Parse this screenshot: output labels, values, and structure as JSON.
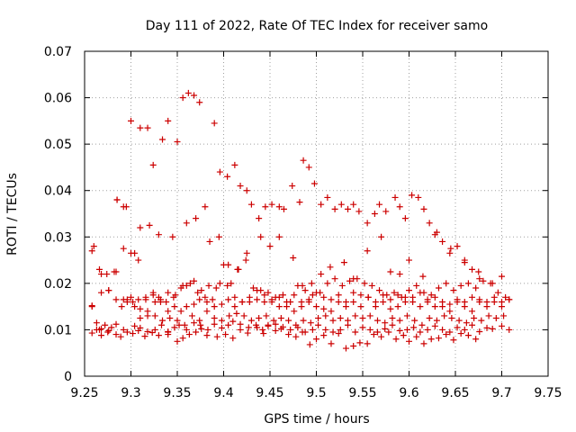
{
  "chart_data": {
    "type": "scatter",
    "title": "Day 111 of 2022, Rate Of TEC Index for receiver samo",
    "xlabel": "GPS time / hours",
    "ylabel": "ROTI / TECUs",
    "xlim": [
      9.25,
      9.75
    ],
    "ylim": [
      0,
      0.07
    ],
    "xticks": [
      9.25,
      9.3,
      9.35,
      9.4,
      9.45,
      9.5,
      9.55,
      9.6,
      9.65,
      9.7,
      9.75
    ],
    "xtick_labels": [
      "9.25",
      "9.3",
      "9.35",
      "9.4",
      "9.45",
      "9.5",
      "9.55",
      "9.6",
      "9.65",
      "9.7",
      "9.75"
    ],
    "yticks": [
      0,
      0.01,
      0.02,
      0.03,
      0.04,
      0.05,
      0.06,
      0.07
    ],
    "ytick_labels": [
      "0",
      "0.01",
      "0.02",
      "0.03",
      "0.04",
      "0.05",
      "0.06",
      "0.07"
    ],
    "grid": true,
    "marker": "plus",
    "color": "#cc0000",
    "series": [
      {
        "x": [
          9.258,
          9.258,
          9.263,
          9.263,
          9.268,
          9.268,
          9.275,
          9.279,
          9.284,
          9.289,
          9.302,
          9.308,
          9.315,
          9.323,
          9.33,
          9.34,
          9.34,
          9.35,
          9.356,
          9.363,
          9.37,
          9.376,
          9.382,
          9.393,
          9.402,
          9.41,
          9.418,
          9.426,
          9.436,
          9.443,
          9.448,
          9.456,
          9.462,
          9.47,
          9.478,
          9.485,
          9.493,
          9.5,
          9.508,
          9.516,
          9.524,
          9.532,
          9.54,
          9.547,
          9.555,
          9.562,
          9.57,
          9.578,
          9.586,
          9.594,
          9.6,
          9.608,
          9.616,
          9.624,
          9.632,
          9.64,
          9.648,
          9.656,
          9.664,
          9.672,
          9.258,
          9.266,
          9.272,
          9.276,
          9.284,
          9.292,
          9.296,
          9.304,
          9.31,
          9.318,
          9.326,
          9.333,
          9.34,
          9.347,
          9.352,
          9.36,
          9.368,
          9.375,
          9.383,
          9.39,
          9.398,
          9.405,
          9.41,
          9.418,
          9.427,
          9.435,
          9.442,
          9.448,
          9.456,
          9.464,
          9.472,
          9.48,
          9.488,
          9.496,
          9.502,
          9.51,
          9.518,
          9.526,
          9.534,
          9.542,
          9.55,
          9.558,
          9.566,
          9.574,
          9.582,
          9.59,
          9.598,
          9.605,
          9.612,
          9.62,
          9.628,
          9.636,
          9.644,
          9.652,
          9.66,
          9.668,
          9.676,
          9.684,
          9.69,
          9.7,
          9.708,
          9.258,
          9.266,
          9.274,
          9.282,
          9.29,
          9.296,
          9.304,
          9.31,
          9.318,
          9.326,
          9.332,
          9.34,
          9.347,
          9.354,
          9.36,
          9.368,
          9.374,
          9.382,
          9.39,
          9.398,
          9.405,
          9.412,
          9.42,
          9.428,
          9.436,
          9.444,
          9.452,
          9.46,
          9.468,
          9.476,
          9.484,
          9.492,
          9.5,
          9.508,
          9.516,
          9.524,
          9.532,
          9.54,
          9.548,
          9.556,
          9.564,
          9.572,
          9.58,
          9.588,
          9.596,
          9.604,
          9.612,
          9.62,
          9.628,
          9.636,
          9.644,
          9.652,
          9.66,
          9.668,
          9.676,
          9.684,
          9.692,
          9.7,
          9.708,
          9.26,
          9.268,
          9.276,
          9.284,
          9.292,
          9.3,
          9.308,
          9.316,
          9.324,
          9.332,
          9.34,
          9.348,
          9.356,
          9.364,
          9.372,
          9.38,
          9.388,
          9.396,
          9.404,
          9.412,
          9.42,
          9.428,
          9.436,
          9.444,
          9.452,
          9.46,
          9.468,
          9.476,
          9.484,
          9.492,
          9.5,
          9.508,
          9.516,
          9.524,
          9.532,
          9.54,
          9.548,
          9.556,
          9.564,
          9.572,
          9.58,
          9.588,
          9.596,
          9.604,
          9.612,
          9.62,
          9.628,
          9.636,
          9.644,
          9.652,
          9.66,
          9.668,
          9.676,
          9.684,
          9.692,
          9.7,
          9.708,
          9.296,
          9.302,
          9.31,
          9.318,
          9.326,
          9.334,
          9.342,
          9.35,
          9.358,
          9.366,
          9.374,
          9.382,
          9.39,
          9.398,
          9.406,
          9.414,
          9.422,
          9.43,
          9.438,
          9.446,
          9.454,
          9.462,
          9.47,
          9.478,
          9.486,
          9.494,
          9.502,
          9.51,
          9.518,
          9.526,
          9.534,
          9.542,
          9.55,
          9.558,
          9.566,
          9.574,
          9.582,
          9.59,
          9.598,
          9.606,
          9.614,
          9.622,
          9.63,
          9.638,
          9.646,
          9.654,
          9.662,
          9.67,
          9.678,
          9.686,
          9.694,
          9.702,
          9.268,
          9.276,
          9.284,
          9.292,
          9.3,
          9.308,
          9.316,
          9.324,
          9.33,
          9.338,
          9.346,
          9.354,
          9.36,
          9.368,
          9.376,
          9.384,
          9.392,
          9.4,
          9.408,
          9.416,
          9.424,
          9.432,
          9.44,
          9.448,
          9.456,
          9.464,
          9.472,
          9.48,
          9.488,
          9.496,
          9.504,
          9.512,
          9.52,
          9.528,
          9.536,
          9.544,
          9.552,
          9.56,
          9.568,
          9.576,
          9.584,
          9.592,
          9.6,
          9.608,
          9.616,
          9.624,
          9.632,
          9.64,
          9.648,
          9.656,
          9.664,
          9.672,
          9.68,
          9.688,
          9.696,
          9.704,
          9.285,
          9.295,
          9.31,
          9.32,
          9.33,
          9.345,
          9.36,
          9.37,
          9.385,
          9.395,
          9.405,
          9.415,
          9.425,
          9.44,
          9.45,
          9.46,
          9.475,
          9.485,
          9.495,
          9.505,
          9.515,
          9.53,
          9.54,
          9.555,
          9.57,
          9.58,
          9.59,
          9.6,
          9.615,
          9.63,
          9.645,
          9.66,
          9.675,
          9.69,
          9.7,
          9.285,
          9.292,
          9.3,
          9.304,
          9.31,
          9.318,
          9.324,
          9.334,
          9.34,
          9.35,
          9.356,
          9.362,
          9.368,
          9.374,
          9.38,
          9.39,
          9.396,
          9.404,
          9.412,
          9.418,
          9.425,
          9.43,
          9.438,
          9.445,
          9.452,
          9.46,
          9.465,
          9.474,
          9.482,
          9.486,
          9.492,
          9.498,
          9.505,
          9.512,
          9.52,
          9.527,
          9.534,
          9.54,
          9.546,
          9.555,
          9.563,
          9.568,
          9.575,
          9.585,
          9.59,
          9.596,
          9.603,
          9.61,
          9.616,
          9.622,
          9.628,
          9.636,
          9.644,
          9.652,
          9.66,
          9.668,
          9.676
        ],
        "y": [
          0.0152,
          0.0093,
          0.01,
          0.0115,
          0.0102,
          0.0088,
          0.0095,
          0.0105,
          0.009,
          0.0085,
          0.0092,
          0.0098,
          0.0086,
          0.0094,
          0.0088,
          0.0095,
          0.009,
          0.0075,
          0.0082,
          0.009,
          0.0095,
          0.0102,
          0.0088,
          0.0085,
          0.009,
          0.0082,
          0.01,
          0.0093,
          0.0105,
          0.0092,
          0.011,
          0.0098,
          0.0102,
          0.009,
          0.0085,
          0.0095,
          0.0068,
          0.008,
          0.0088,
          0.007,
          0.0092,
          0.006,
          0.0065,
          0.0072,
          0.007,
          0.009,
          0.0085,
          0.0095,
          0.008,
          0.0088,
          0.0075,
          0.0085,
          0.007,
          0.008,
          0.0082,
          0.009,
          0.0078,
          0.0092,
          0.0088,
          0.008,
          0.015,
          0.01,
          0.011,
          0.0098,
          0.0112,
          0.01,
          0.0095,
          0.0108,
          0.0104,
          0.0096,
          0.01,
          0.011,
          0.0096,
          0.0105,
          0.011,
          0.01,
          0.0115,
          0.011,
          0.01,
          0.0112,
          0.0104,
          0.011,
          0.0118,
          0.0112,
          0.0105,
          0.011,
          0.01,
          0.0108,
          0.0112,
          0.0106,
          0.01,
          0.0105,
          0.0095,
          0.01,
          0.011,
          0.01,
          0.0095,
          0.01,
          0.011,
          0.0095,
          0.0105,
          0.01,
          0.0095,
          0.0102,
          0.011,
          0.0098,
          0.01,
          0.0105,
          0.0095,
          0.01,
          0.0108,
          0.01,
          0.0095,
          0.0105,
          0.01,
          0.011,
          0.0096,
          0.0104,
          0.0102,
          0.0108,
          0.01,
          0.027,
          0.023,
          0.022,
          0.0225,
          0.015,
          0.016,
          0.015,
          0.0145,
          0.014,
          0.016,
          0.0165,
          0.014,
          0.015,
          0.014,
          0.015,
          0.0155,
          0.0165,
          0.016,
          0.015,
          0.0155,
          0.0165,
          0.015,
          0.016,
          0.016,
          0.0165,
          0.016,
          0.016,
          0.015,
          0.015,
          0.014,
          0.015,
          0.016,
          0.015,
          0.0145,
          0.014,
          0.016,
          0.015,
          0.016,
          0.015,
          0.017,
          0.015,
          0.016,
          0.0145,
          0.015,
          0.017,
          0.016,
          0.015,
          0.016,
          0.015,
          0.015,
          0.014,
          0.016,
          0.015,
          0.014,
          0.016,
          0.015,
          0.016,
          0.015,
          0.0165,
          0.028,
          0.018,
          0.0185,
          0.0165,
          0.0165,
          0.017,
          0.0165,
          0.017,
          0.0175,
          0.016,
          0.018,
          0.0175,
          0.0195,
          0.02,
          0.018,
          0.017,
          0.0165,
          0.02,
          0.0195,
          0.017,
          0.016,
          0.017,
          0.0185,
          0.0175,
          0.0165,
          0.017,
          0.016,
          0.0175,
          0.016,
          0.0165,
          0.018,
          0.017,
          0.0165,
          0.0175,
          0.016,
          0.018,
          0.0175,
          0.017,
          0.016,
          0.0175,
          0.0165,
          0.0175,
          0.016,
          0.017,
          0.018,
          0.0165,
          0.017,
          0.016,
          0.0155,
          0.0165,
          0.016,
          0.017,
          0.0165,
          0.016,
          0.017,
          0.016,
          0.0165,
          0.0165,
          0.016,
          0.0125,
          0.013,
          0.013,
          0.012,
          0.0125,
          0.012,
          0.011,
          0.013,
          0.012,
          0.014,
          0.0125,
          0.012,
          0.013,
          0.0135,
          0.013,
          0.012,
          0.0125,
          0.013,
          0.012,
          0.0125,
          0.012,
          0.011,
          0.012,
          0.0115,
          0.0125,
          0.013,
          0.012,
          0.0125,
          0.012,
          0.013,
          0.0125,
          0.013,
          0.012,
          0.0115,
          0.0125,
          0.012,
          0.013,
          0.012,
          0.011,
          0.0125,
          0.012,
          0.013,
          0.0125,
          0.012,
          0.0115,
          0.0125,
          0.012,
          0.013,
          0.0125,
          0.013,
          0.022,
          0.0185,
          0.0225,
          0.0275,
          0.0265,
          0.025,
          0.0165,
          0.018,
          0.017,
          0.016,
          0.017,
          0.019,
          0.0195,
          0.0205,
          0.0185,
          0.0195,
          0.019,
          0.024,
          0.02,
          0.023,
          0.025,
          0.019,
          0.0185,
          0.018,
          0.017,
          0.0175,
          0.016,
          0.0195,
          0.0185,
          0.0175,
          0.018,
          0.02,
          0.021,
          0.0195,
          0.0205,
          0.021,
          0.02,
          0.0195,
          0.0185,
          0.0175,
          0.018,
          0.017,
          0.0185,
          0.0195,
          0.018,
          0.0175,
          0.019,
          0.02,
          0.0185,
          0.0195,
          0.02,
          0.019,
          0.0205,
          0.02,
          0.018,
          0.017,
          0.038,
          0.0365,
          0.032,
          0.0325,
          0.0305,
          0.03,
          0.033,
          0.034,
          0.029,
          0.03,
          0.024,
          0.023,
          0.0265,
          0.03,
          0.028,
          0.03,
          0.0255,
          0.0195,
          0.02,
          0.022,
          0.0235,
          0.0245,
          0.021,
          0.027,
          0.03,
          0.0225,
          0.022,
          0.025,
          0.0215,
          0.031,
          0.0275,
          0.0245,
          0.0225,
          0.02,
          0.0215,
          0.038,
          0.0365,
          0.055,
          0.0265,
          0.0535,
          0.0535,
          0.0455,
          0.051,
          0.055,
          0.0505,
          0.06,
          0.061,
          0.0605,
          0.059,
          0.0365,
          0.0545,
          0.044,
          0.043,
          0.0455,
          0.041,
          0.04,
          0.037,
          0.034,
          0.0365,
          0.037,
          0.0365,
          0.036,
          0.041,
          0.0375,
          0.0465,
          0.045,
          0.0415,
          0.037,
          0.0385,
          0.036,
          0.037,
          0.036,
          0.037,
          0.0355,
          0.033,
          0.035,
          0.037,
          0.0355,
          0.0385,
          0.0365,
          0.034,
          0.039,
          0.0385,
          0.036,
          0.033,
          0.0305,
          0.029,
          0.0265,
          0.028,
          0.025,
          0.023,
          0.021
        ]
      }
    ]
  }
}
